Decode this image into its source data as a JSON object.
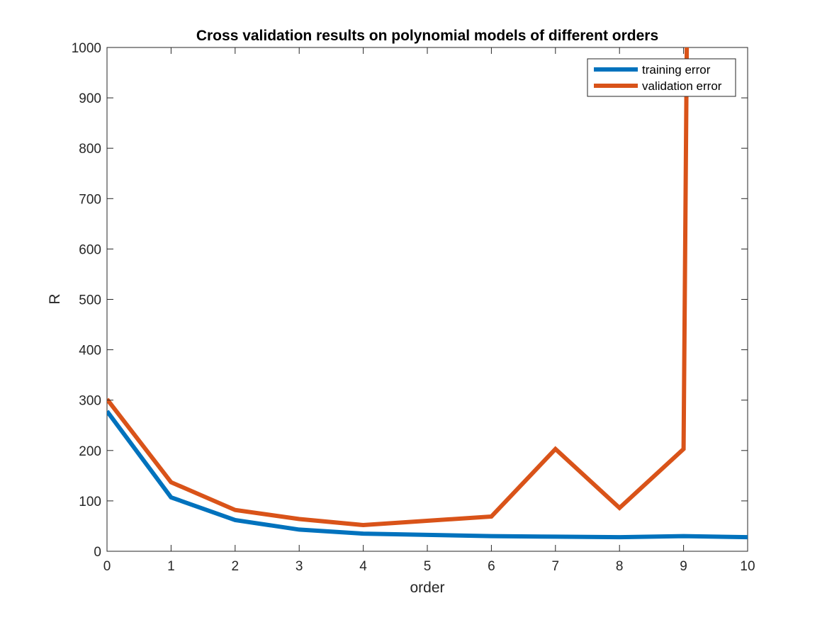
{
  "chart_data": {
    "type": "line",
    "title": "Cross validation results on polynomial models of different orders",
    "xlabel": "order",
    "ylabel": "R",
    "xlim": [
      0,
      10
    ],
    "ylim": [
      0,
      1000
    ],
    "xticks": [
      0,
      1,
      2,
      3,
      4,
      5,
      6,
      7,
      8,
      9,
      10
    ],
    "yticks": [
      0,
      100,
      200,
      300,
      400,
      500,
      600,
      700,
      800,
      900,
      1000
    ],
    "grid": false,
    "legend_position": "top-right",
    "x": [
      0,
      1,
      2,
      3,
      4,
      6,
      7,
      8,
      9,
      10
    ],
    "series": [
      {
        "name": "training error",
        "color": "#0072BD",
        "x": [
          0,
          1,
          2,
          3,
          4,
          6,
          7,
          8,
          9,
          10
        ],
        "values": [
          278,
          107,
          62,
          43,
          35,
          30,
          29,
          28,
          30,
          28
        ]
      },
      {
        "name": "validation error",
        "color": "#D95319",
        "x": [
          0,
          1,
          2,
          3,
          4,
          6,
          7,
          8,
          9,
          9.05
        ],
        "values": [
          302,
          137,
          82,
          64,
          52,
          69,
          203,
          86,
          203,
          1000
        ]
      }
    ]
  }
}
